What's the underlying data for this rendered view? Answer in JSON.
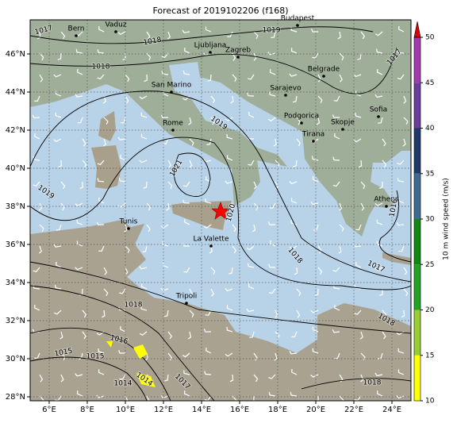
{
  "title": "Forecast of 2019102206 (f168)",
  "lon_ticks": [
    {
      "value": 6,
      "label": "6°E"
    },
    {
      "value": 8,
      "label": "8°E"
    },
    {
      "value": 10,
      "label": "10°E"
    },
    {
      "value": 12,
      "label": "12°E"
    },
    {
      "value": 14,
      "label": "14°E"
    },
    {
      "value": 16,
      "label": "16°E"
    },
    {
      "value": 18,
      "label": "18°E"
    },
    {
      "value": 20,
      "label": "20°E"
    },
    {
      "value": 22,
      "label": "22°E"
    },
    {
      "value": 24,
      "label": "24°E"
    }
  ],
  "lat_ticks": [
    {
      "value": 28,
      "label": "28°N"
    },
    {
      "value": 30,
      "label": "30°N"
    },
    {
      "value": 32,
      "label": "32°N"
    },
    {
      "value": 34,
      "label": "34°N"
    },
    {
      "value": 36,
      "label": "36°N"
    },
    {
      "value": 38,
      "label": "38°N"
    },
    {
      "value": 40,
      "label": "40°N"
    },
    {
      "value": 42,
      "label": "42°N"
    },
    {
      "value": 44,
      "label": "44°N"
    },
    {
      "value": 46,
      "label": "46°N"
    }
  ],
  "cities": [
    "Bern",
    "Vaduz",
    "Budapest",
    "Ljubljana",
    "Zagreb",
    "San Marino",
    "Belgrade",
    "Sarajevo",
    "Rome",
    "Podgorica",
    "Skopje",
    "Sofia",
    "Tirana",
    "Athens",
    "Tunis",
    "La Valette",
    "Tripoli"
  ],
  "isobar_labels": [
    "1017",
    "1018",
    "1019",
    "1018",
    "1017",
    "1019",
    "1021",
    "1019",
    "1020",
    "1016",
    "1018",
    "1017",
    "1018",
    "1018",
    "1016",
    "1015",
    "1015",
    "1014",
    "1014",
    "1017",
    "1018"
  ],
  "colorbar": {
    "label": "10 m wind speed (m/s)",
    "ticks": [
      10,
      15,
      20,
      25,
      30,
      35,
      40,
      45,
      50
    ],
    "lim": [
      10,
      50
    ],
    "colors": [
      "#ffff00",
      "#9acd32",
      "#23a323",
      "#118811",
      "#3e6b8e",
      "#1f3a66",
      "#6a3d9a",
      "#a43ab0"
    ],
    "extend_color": "#e00000"
  }
}
